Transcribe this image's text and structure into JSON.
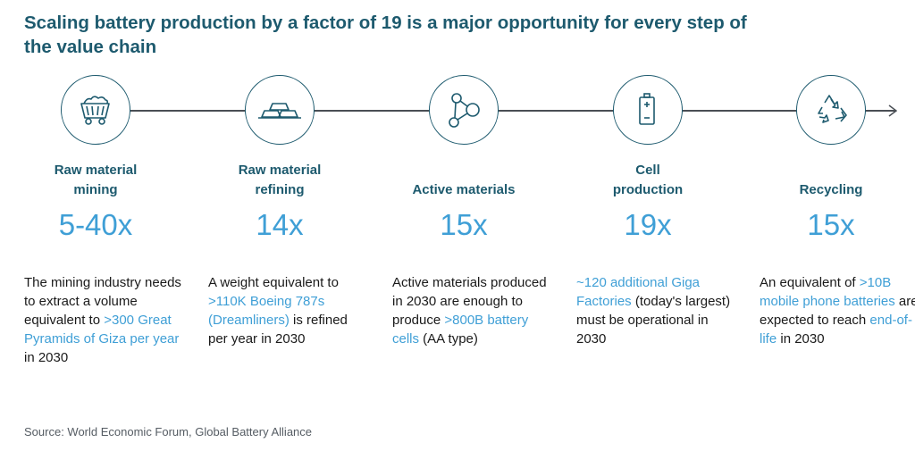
{
  "title": "Scaling battery production by a factor of 19 is a major opportunity for every step of the value chain",
  "colors": {
    "title": "#1d5a6e",
    "value": "#3f9fd6",
    "line": "#4a4f55"
  },
  "stages": [
    {
      "icon": "mining-cart-icon",
      "label": "Raw material\nmining",
      "value": "5-40x",
      "desc": [
        {
          "t": "The mining industry needs to extract a volume equivalent to ",
          "hl": false
        },
        {
          "t": ">300 Great Pyramids of Giza per year",
          "hl": true
        },
        {
          "t": " in 2030",
          "hl": false
        }
      ]
    },
    {
      "icon": "metal-bars-icon",
      "label": "Raw material\nrefining",
      "value": "14x",
      "desc": [
        {
          "t": "A weight equivalent to ",
          "hl": false
        },
        {
          "t": ">110K Boeing 787s (Dreamliners)",
          "hl": true
        },
        {
          "t": " is refined per year in 2030",
          "hl": false
        }
      ]
    },
    {
      "icon": "molecule-icon",
      "label": "Active materials",
      "value": "15x",
      "desc": [
        {
          "t": "Active materials produced in 2030 are enough to produce ",
          "hl": false
        },
        {
          "t": ">800B battery cells",
          "hl": true
        },
        {
          "t": " (AA type)",
          "hl": false
        }
      ]
    },
    {
      "icon": "battery-icon",
      "label": "Cell\nproduction",
      "value": "19x",
      "desc": [
        {
          "t": "~120 additional Giga Factories",
          "hl": true
        },
        {
          "t": " (today's largest) must be operational in 2030",
          "hl": false
        }
      ]
    },
    {
      "icon": "recycle-icon",
      "label": "Recycling",
      "value": "15x",
      "desc": [
        {
          "t": "An equivalent of ",
          "hl": false
        },
        {
          "t": ">10B mobile phone batteries",
          "hl": true
        },
        {
          "t": " are expected to reach ",
          "hl": false
        },
        {
          "t": "end-of-life",
          "hl": true
        },
        {
          "t": " in 2030",
          "hl": false
        }
      ]
    }
  ],
  "source": "Source: World Economic Forum, Global Battery Alliance"
}
